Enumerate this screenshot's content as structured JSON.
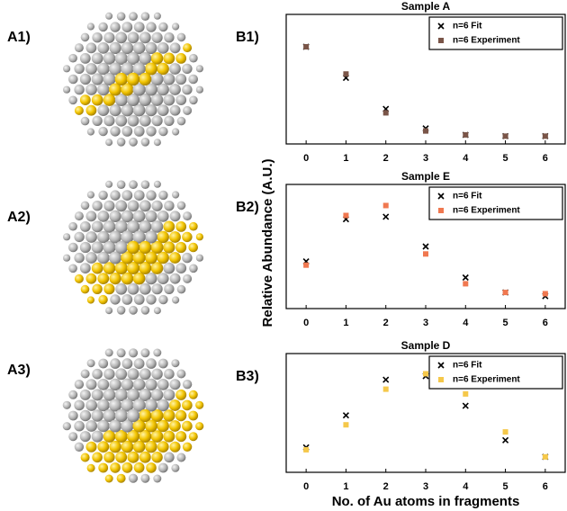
{
  "images": [
    {
      "label": "A1)"
    },
    {
      "label": "A2)"
    },
    {
      "label": "A3)"
    }
  ],
  "chart_data": [
    {
      "type": "scatter",
      "panel_label": "B1)",
      "title": "Sample A",
      "x": [
        0,
        1,
        2,
        3,
        4,
        5,
        6
      ],
      "xlim": [
        -0.5,
        6.5
      ],
      "xticks": [
        0,
        1,
        2,
        3,
        4,
        5,
        6
      ],
      "ylim": [
        0,
        1
      ],
      "legend": "upper right",
      "series": [
        {
          "name": "n=6 Fit",
          "color": "#000000",
          "marker": "x",
          "values": [
            0.75,
            0.51,
            0.27,
            0.12,
            0.07,
            0.06,
            0.06
          ]
        },
        {
          "name": "n=6 Experiment",
          "color": "#7a5548",
          "marker": "s",
          "values": [
            0.75,
            0.54,
            0.24,
            0.1,
            0.07,
            0.06,
            0.06
          ]
        }
      ]
    },
    {
      "type": "scatter",
      "panel_label": "B2)",
      "title": "Sample E",
      "ylabel": "Relative Abundance (A.U.)",
      "x": [
        0,
        1,
        2,
        3,
        4,
        5,
        6
      ],
      "xlim": [
        -0.5,
        6.5
      ],
      "xticks": [
        0,
        1,
        2,
        3,
        4,
        5,
        6
      ],
      "ylim": [
        0,
        1
      ],
      "legend": "upper right",
      "series": [
        {
          "name": "n=6 Fit",
          "color": "#000000",
          "marker": "x",
          "values": [
            0.38,
            0.72,
            0.74,
            0.5,
            0.25,
            0.13,
            0.1
          ]
        },
        {
          "name": "n=6 Experiment",
          "color": "#f07850",
          "marker": "s",
          "values": [
            0.35,
            0.75,
            0.83,
            0.44,
            0.2,
            0.13,
            0.12
          ]
        }
      ]
    },
    {
      "type": "scatter",
      "panel_label": "B3)",
      "title": "Sample D",
      "xlabel": "No. of Au atoms in fragments",
      "x": [
        0,
        1,
        2,
        3,
        4,
        5,
        6
      ],
      "xlim": [
        -0.5,
        6.5
      ],
      "xticks": [
        0,
        1,
        2,
        3,
        4,
        5,
        6
      ],
      "ylim": [
        0,
        1
      ],
      "legend": "upper right",
      "series": [
        {
          "name": "n=6 Fit",
          "color": "#000000",
          "marker": "x",
          "values": [
            0.21,
            0.48,
            0.78,
            0.81,
            0.56,
            0.27,
            0.13
          ]
        },
        {
          "name": "n=6 Experiment",
          "color": "#f5c84a",
          "marker": "s",
          "values": [
            0.19,
            0.4,
            0.7,
            0.83,
            0.66,
            0.34,
            0.13
          ]
        }
      ]
    }
  ]
}
